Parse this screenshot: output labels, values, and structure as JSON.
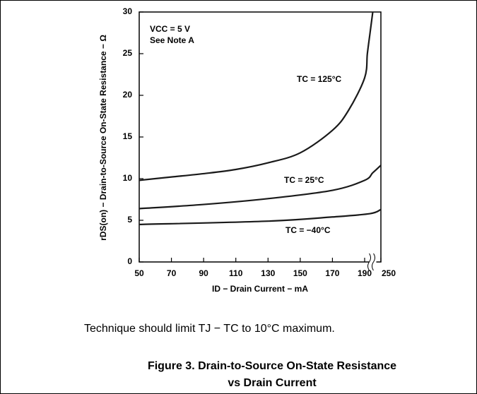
{
  "chart_data": {
    "type": "line",
    "title": "Figure 3. Drain-to-Source On-State Resistance",
    "subtitle": "vs Drain Current",
    "note": "Technique should limit TJ − TC to 10°C maximum.",
    "annotations": [
      "VCC = 5 V",
      "See Note A"
    ],
    "xlabel": "ID − Drain Current − mA",
    "ylabel": "rDS(on) − Drain-to-Source On-State Resistance − Ω",
    "xlim": [
      50,
      250
    ],
    "xticks": [
      50,
      70,
      90,
      110,
      130,
      150,
      170,
      190,
      250
    ],
    "axis_break": [
      190,
      250
    ],
    "ylim": [
      0,
      30
    ],
    "yticks": [
      0,
      5,
      10,
      15,
      20,
      25,
      30
    ],
    "grid": false,
    "series": [
      {
        "name": "TC = 125°C",
        "color": "#1a1a1a",
        "x": [
          50,
          70,
          90,
          110,
          130,
          150,
          170,
          180,
          190,
          200,
          210,
          220
        ],
        "values": [
          9.8,
          10.2,
          10.6,
          11.1,
          11.9,
          13.1,
          15.8,
          18.2,
          22.1,
          25,
          27.5,
          30
        ]
      },
      {
        "name": "TC = 25°C",
        "color": "#1a1a1a",
        "x": [
          50,
          90,
          130,
          170,
          190,
          220,
          250
        ],
        "values": [
          6.4,
          6.9,
          7.6,
          8.6,
          9.8,
          10.7,
          11.6
        ]
      },
      {
        "name": "TC = −40°C",
        "color": "#1a1a1a",
        "x": [
          50,
          130,
          170,
          210,
          250
        ],
        "values": [
          4.5,
          4.9,
          5.4,
          5.8,
          6.3
        ]
      }
    ]
  }
}
